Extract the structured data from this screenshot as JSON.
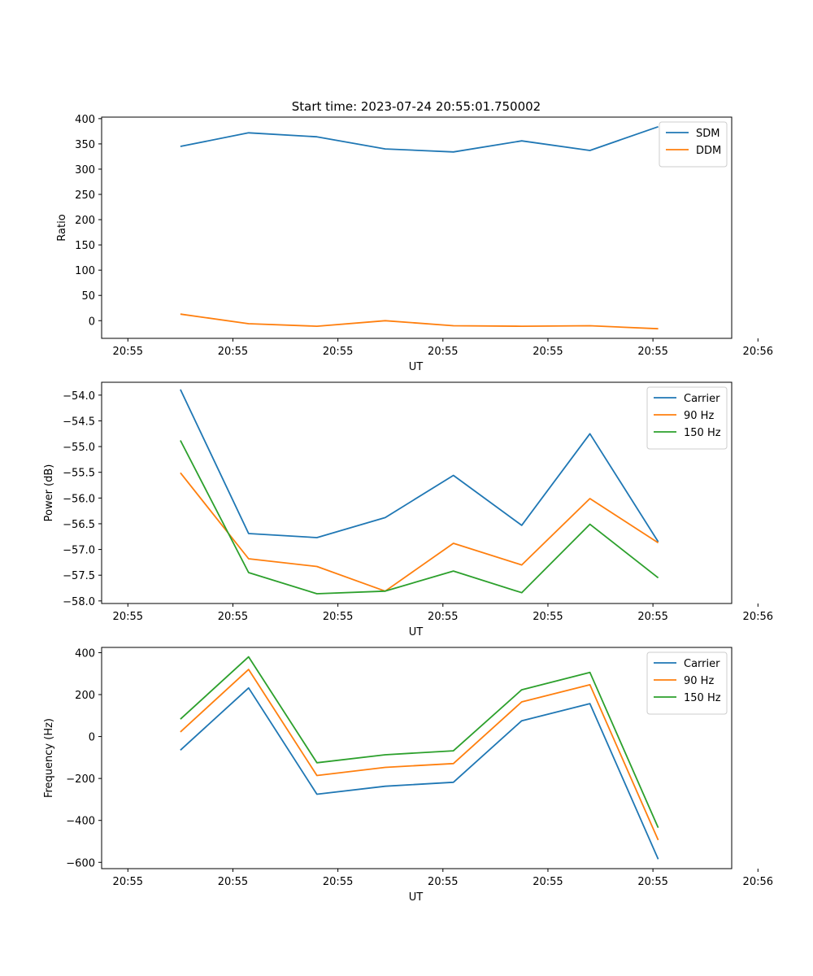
{
  "figure_title": "Start time: 2023-07-24 20:55:01.750002",
  "chart_data": [
    {
      "type": "line",
      "title": "Start time: 2023-07-24 20:55:01.750002",
      "xlabel": "UT",
      "ylabel": "Ratio",
      "xlim": [
        0,
        12
      ],
      "ylim": [
        -35,
        403
      ],
      "x_ticks": [
        0.5,
        2.5,
        4.5,
        6.5,
        8.5,
        10.5,
        12.5
      ],
      "x_tick_labels": [
        "20:55",
        "20:55",
        "20:55",
        "20:55",
        "20:55",
        "20:55",
        "20:56"
      ],
      "y_ticks": [
        0,
        50,
        100,
        150,
        200,
        250,
        300,
        350,
        400
      ],
      "y_tick_labels": [
        "0",
        "50",
        "100",
        "150",
        "200",
        "250",
        "300",
        "350",
        "400"
      ],
      "legend_position": "top-right",
      "x": [
        1.5,
        2.8,
        4.1,
        5.4,
        6.7,
        8.0,
        9.3,
        10.6
      ],
      "series": [
        {
          "name": "SDM",
          "color": "#1f77b4",
          "values": [
            345,
            372,
            364,
            340,
            334,
            356,
            337,
            384
          ]
        },
        {
          "name": "DDM",
          "color": "#ff7f0e",
          "values": [
            13,
            -6,
            -11,
            0,
            -10,
            -11,
            -10,
            -16
          ]
        }
      ]
    },
    {
      "type": "line",
      "title": "",
      "xlabel": "UT",
      "ylabel": "Power (dB)",
      "xlim": [
        0,
        12
      ],
      "ylim": [
        -58.05,
        -53.75
      ],
      "x_ticks": [
        0.5,
        2.5,
        4.5,
        6.5,
        8.5,
        10.5,
        12.5
      ],
      "x_tick_labels": [
        "20:55",
        "20:55",
        "20:55",
        "20:55",
        "20:55",
        "20:55",
        "20:56"
      ],
      "y_ticks": [
        -58.0,
        -57.5,
        -57.0,
        -56.5,
        -56.0,
        -55.5,
        -55.0,
        -54.5,
        -54.0
      ],
      "y_tick_labels": [
        "−58.0",
        "−57.5",
        "−57.0",
        "−56.5",
        "−56.0",
        "−55.5",
        "−55.0",
        "−54.5",
        "−54.0"
      ],
      "legend_position": "top-right",
      "x": [
        1.5,
        2.8,
        4.1,
        5.4,
        6.7,
        8.0,
        9.3,
        10.6
      ],
      "series": [
        {
          "name": "Carrier",
          "color": "#1f77b4",
          "values": [
            -53.89,
            -56.69,
            -56.77,
            -56.38,
            -55.56,
            -56.53,
            -54.75,
            -56.85
          ]
        },
        {
          "name": "90 Hz",
          "color": "#ff7f0e",
          "values": [
            -55.51,
            -57.18,
            -57.33,
            -57.81,
            -56.88,
            -57.3,
            -56.01,
            -56.87
          ]
        },
        {
          "name": "150 Hz",
          "color": "#2ca02c",
          "values": [
            -54.88,
            -57.45,
            -57.86,
            -57.81,
            -57.42,
            -57.84,
            -56.51,
            -57.55
          ]
        }
      ]
    },
    {
      "type": "line",
      "title": "",
      "xlabel": "UT",
      "ylabel": "Frequency (Hz)",
      "xlim": [
        0,
        12
      ],
      "ylim": [
        -630,
        425
      ],
      "x_ticks": [
        0.5,
        2.5,
        4.5,
        6.5,
        8.5,
        10.5,
        12.5
      ],
      "x_tick_labels": [
        "20:55",
        "20:55",
        "20:55",
        "20:55",
        "20:55",
        "20:55",
        "20:56"
      ],
      "y_ticks": [
        -600,
        -400,
        -200,
        0,
        200,
        400
      ],
      "y_tick_labels": [
        "−600",
        "−400",
        "−200",
        "0",
        "200",
        "400"
      ],
      "legend_position": "top-right",
      "x": [
        1.5,
        2.8,
        4.1,
        5.4,
        6.7,
        8.0,
        9.3,
        10.6
      ],
      "series": [
        {
          "name": "Carrier",
          "color": "#1f77b4",
          "values": [
            -65,
            232,
            -275,
            -237,
            -218,
            75,
            157,
            -585
          ]
        },
        {
          "name": "90 Hz",
          "color": "#ff7f0e",
          "values": [
            22,
            320,
            -186,
            -147,
            -129,
            165,
            247,
            -494
          ]
        },
        {
          "name": "150 Hz",
          "color": "#2ca02c",
          "values": [
            83,
            380,
            -125,
            -87,
            -68,
            223,
            306,
            -435
          ]
        }
      ]
    }
  ]
}
